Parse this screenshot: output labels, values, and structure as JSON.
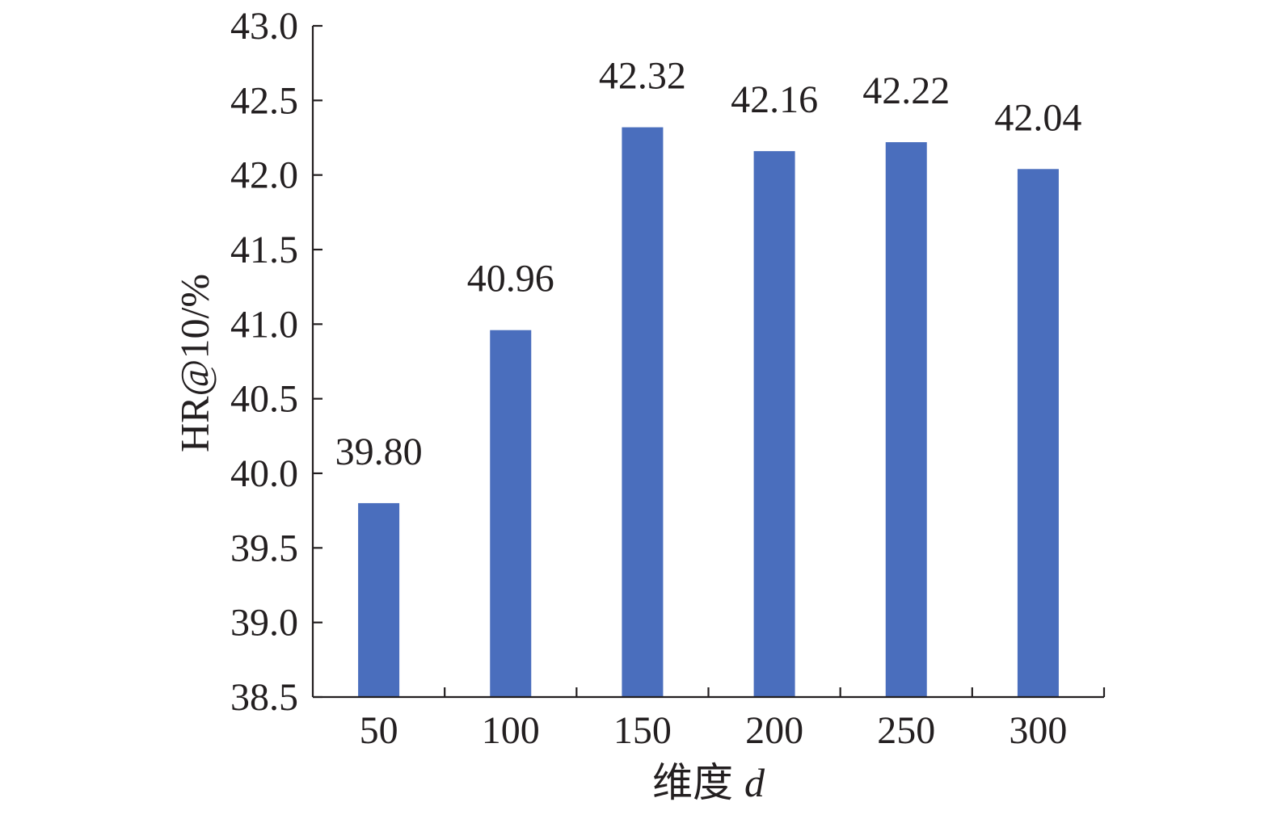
{
  "chart_data": {
    "type": "bar",
    "categories": [
      "50",
      "100",
      "150",
      "200",
      "250",
      "300"
    ],
    "values": [
      39.8,
      40.96,
      42.32,
      42.16,
      42.22,
      42.04
    ],
    "value_labels": [
      "39.80",
      "40.96",
      "42.32",
      "42.16",
      "42.22",
      "42.04"
    ],
    "title": "",
    "xlabel": "维度",
    "xlabel_var": "d",
    "ylabel": "HR@10/%",
    "ylim": [
      38.5,
      43.0
    ],
    "yticks": [
      38.5,
      39.0,
      39.5,
      40.0,
      40.5,
      41.0,
      41.5,
      42.0,
      42.5,
      43.0
    ],
    "ytick_labels": [
      "38.5",
      "39.0",
      "39.5",
      "40.0",
      "40.5",
      "41.0",
      "41.5",
      "42.0",
      "42.5",
      "43.0"
    ],
    "grid": false,
    "legend": "none",
    "bar_color": "#4a6ebd",
    "axis_color": "#231f20"
  }
}
